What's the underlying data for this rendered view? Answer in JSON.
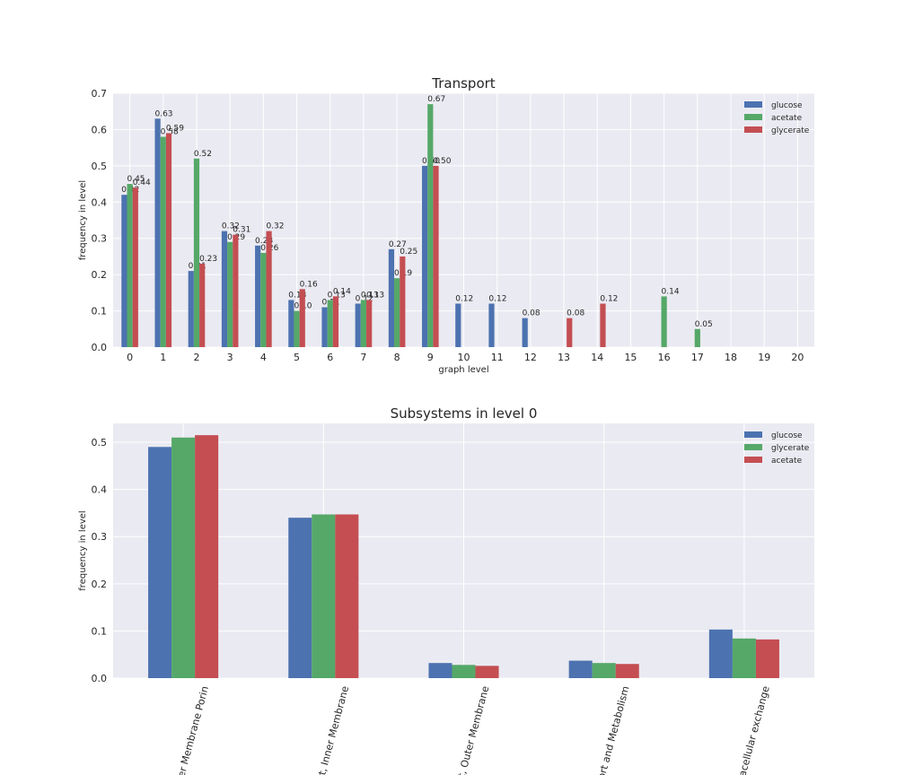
{
  "chart_data": [
    {
      "type": "bar",
      "title": "Transport",
      "xlabel": "graph level",
      "ylabel": "frequency in level",
      "categories": [
        "0",
        "1",
        "2",
        "3",
        "4",
        "5",
        "6",
        "7",
        "8",
        "9",
        "10",
        "11",
        "12",
        "13",
        "14",
        "15",
        "16",
        "17",
        "18",
        "19",
        "20"
      ],
      "series": [
        {
          "name": "glucose",
          "color": "#4c72b0",
          "values": [
            0.42,
            0.63,
            0.21,
            0.32,
            0.28,
            0.13,
            0.11,
            0.12,
            0.27,
            0.5,
            0.12,
            0.12,
            0.08,
            null,
            null,
            null,
            null,
            null,
            null,
            null,
            null
          ],
          "value_labels": [
            "0.42",
            "0.63",
            "0.21",
            "0.32",
            "0.28",
            "0.13",
            "0.11",
            "0.12",
            "0.27",
            "0.50",
            "0.12",
            "0.12",
            "0.08",
            null,
            null,
            null,
            null,
            null,
            null,
            null,
            null
          ]
        },
        {
          "name": "acetate",
          "color": "#55a868",
          "values": [
            0.45,
            0.58,
            0.52,
            0.29,
            0.26,
            0.1,
            0.13,
            0.13,
            0.19,
            0.67,
            null,
            null,
            null,
            null,
            null,
            null,
            0.14,
            0.05,
            null,
            null,
            null
          ],
          "value_labels": [
            "0.45",
            "0.58",
            "0.52",
            "0.29",
            "0.26",
            "0.10",
            "0.13",
            "0.13",
            "0.19",
            "0.67",
            null,
            null,
            null,
            null,
            null,
            null,
            "0.14",
            "0.05",
            null,
            null,
            null
          ]
        },
        {
          "name": "glycerate",
          "color": "#c44e52",
          "values": [
            0.44,
            0.59,
            0.23,
            0.31,
            0.32,
            0.16,
            0.14,
            0.13,
            0.25,
            0.5,
            null,
            null,
            null,
            0.08,
            0.12,
            null,
            null,
            null,
            null,
            null,
            null
          ],
          "value_labels": [
            "0.44",
            "0.59",
            "0.23",
            "0.31",
            "0.32",
            "0.16",
            "0.14",
            "0.13",
            "0.25",
            "0.50",
            null,
            null,
            null,
            "0.08",
            "0.12",
            null,
            null,
            null,
            null,
            null,
            null
          ]
        }
      ],
      "ylim": [
        0,
        0.7
      ],
      "yticks": [
        {
          "value": 0,
          "label": "0.0"
        },
        {
          "value": 0.1,
          "label": "0.1"
        },
        {
          "value": 0.2,
          "label": "0.2"
        },
        {
          "value": 0.3,
          "label": "0.3"
        },
        {
          "value": 0.4,
          "label": "0.4"
        },
        {
          "value": 0.5,
          "label": "0.5"
        },
        {
          "value": 0.6,
          "label": "0.6"
        },
        {
          "value": 0.7,
          "label": "0.7"
        }
      ],
      "grid": true,
      "legend": "upper-right"
    },
    {
      "type": "bar",
      "title": "Subsystems in level 0",
      "ylabel": "frequency in level",
      "categories": [
        "er Membrane Porin",
        "rt, Inner Membrane",
        "rt, Outer Membrane",
        "ort and Metabolism",
        "racellular exchange"
      ],
      "series": [
        {
          "name": "glucose",
          "color": "#4c72b0",
          "values": [
            0.49,
            0.34,
            0.032,
            0.037,
            0.103
          ]
        },
        {
          "name": "glycerate",
          "color": "#55a868",
          "values": [
            0.51,
            0.347,
            0.028,
            0.032,
            0.084
          ]
        },
        {
          "name": "acetate",
          "color": "#c44e52",
          "values": [
            0.515,
            0.347,
            0.026,
            0.03,
            0.082
          ]
        }
      ],
      "ylim": [
        0,
        0.54
      ],
      "yticks": [
        {
          "value": 0,
          "label": "0.0"
        },
        {
          "value": 0.1,
          "label": "0.1"
        },
        {
          "value": 0.2,
          "label": "0.2"
        },
        {
          "value": 0.3,
          "label": "0.3"
        },
        {
          "value": 0.4,
          "label": "0.4"
        },
        {
          "value": 0.5,
          "label": "0.5"
        }
      ],
      "grid": true,
      "legend": "upper-right"
    }
  ]
}
